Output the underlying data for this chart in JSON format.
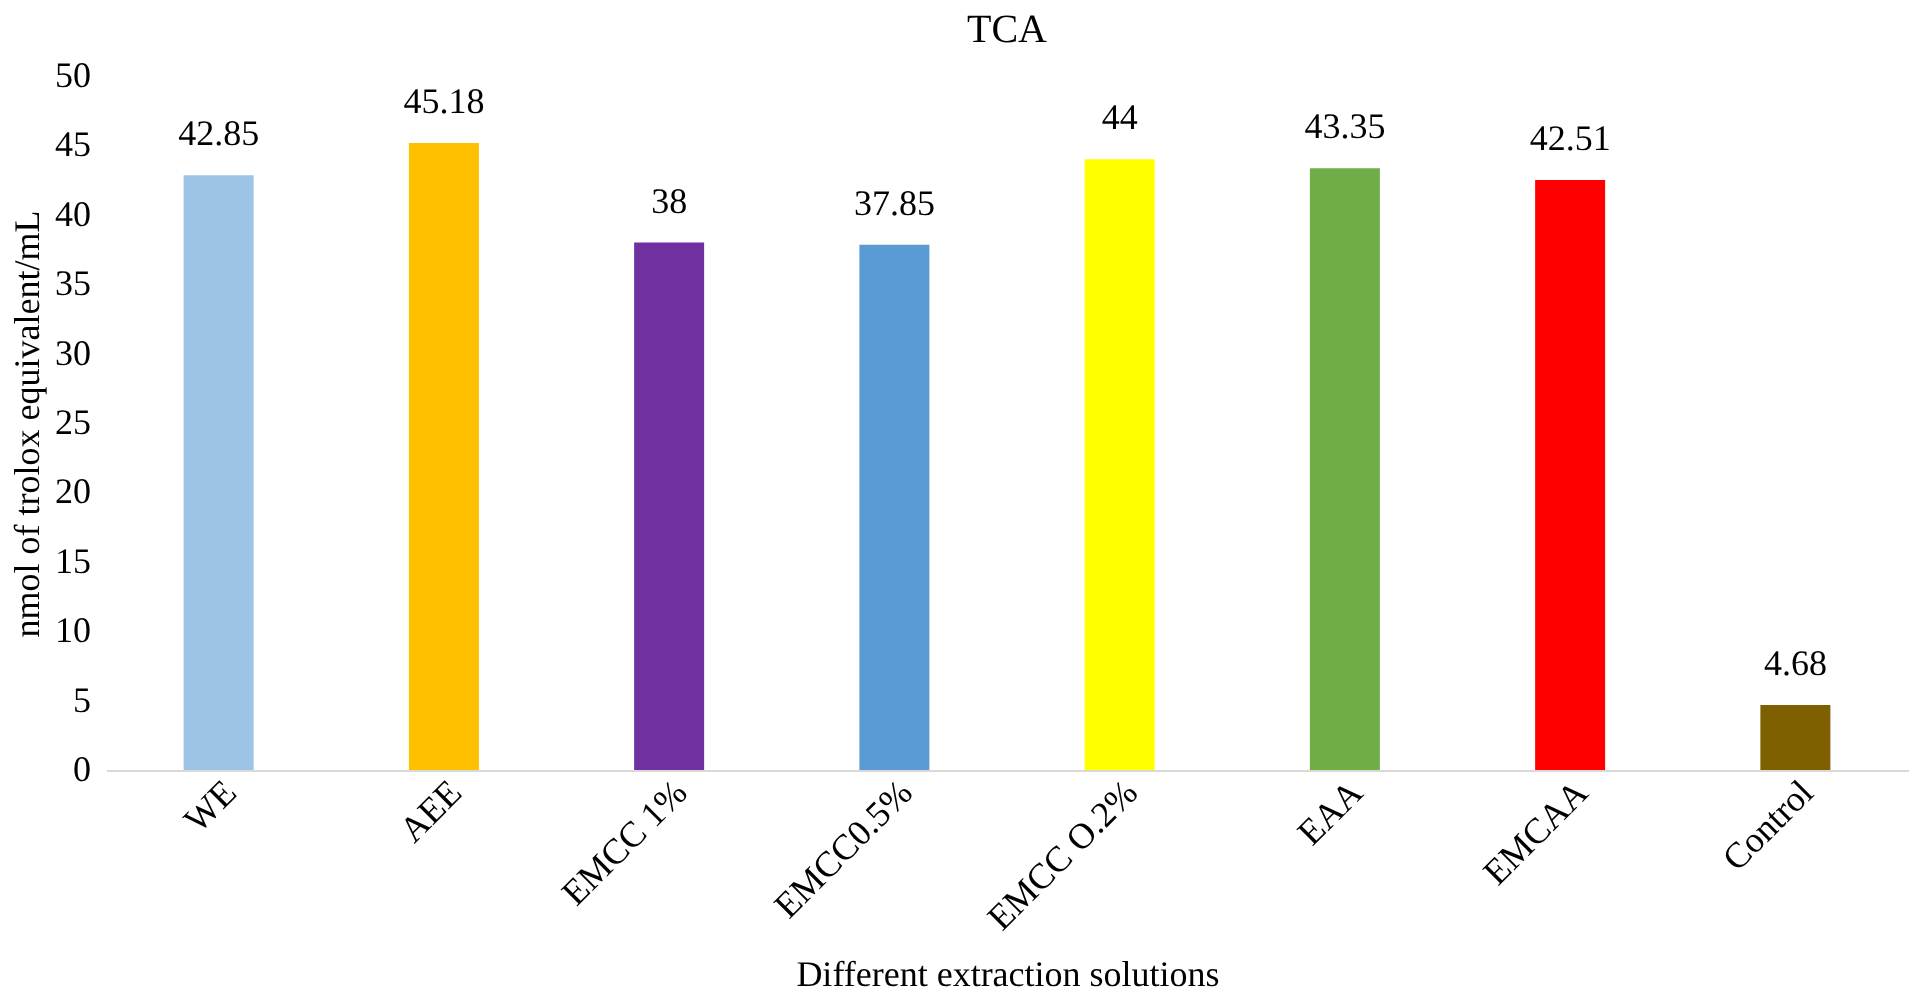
{
  "chart_data": {
    "type": "bar",
    "title": "TCA",
    "xlabel": "Different extraction solutions",
    "ylabel": "nmol of trolox equivalent/mL",
    "categories": [
      "WE",
      "AEE",
      "EMCC 1%",
      "EMCC0.5%",
      "EMCC O.2%",
      "EAA",
      "EMCAA",
      "Control"
    ],
    "values": [
      42.85,
      45.18,
      38,
      37.85,
      44,
      43.35,
      42.51,
      4.68
    ],
    "colors": [
      "#9dc3e6",
      "#ffc000",
      "#7030a0",
      "#5b9bd5",
      "#ffff00",
      "#70ad47",
      "#ff0000",
      "#7f6000"
    ],
    "ylim": [
      0,
      50
    ],
    "yticks": [
      0,
      5,
      10,
      15,
      20,
      25,
      30,
      35,
      40,
      45,
      50
    ],
    "grid": false,
    "data_labels": true
  }
}
